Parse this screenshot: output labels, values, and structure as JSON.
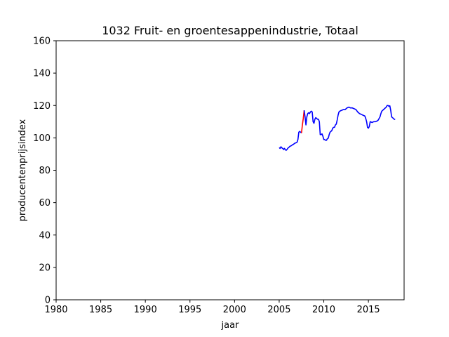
{
  "chart_data": {
    "type": "line",
    "title": "1032 Fruit- en groentesappenindustrie, Totaal",
    "xlabel": "jaar",
    "ylabel": "producentenprijsindex",
    "xlim": [
      1980,
      2019
    ],
    "ylim": [
      0,
      160
    ],
    "xticks": [
      1980,
      1985,
      1990,
      1995,
      2000,
      2005,
      2010,
      2015
    ],
    "yticks": [
      0,
      20,
      40,
      60,
      80,
      100,
      120,
      140,
      160
    ],
    "grid": false,
    "legend": "none",
    "series": [
      {
        "color": "#0000ff",
        "points": [
          [
            2005.0,
            94
          ],
          [
            2005.1,
            93.5
          ],
          [
            2005.2,
            94.5
          ],
          [
            2005.3,
            93.8
          ],
          [
            2005.4,
            93.5
          ],
          [
            2005.5,
            92.8
          ],
          [
            2005.6,
            93.5
          ],
          [
            2005.7,
            92.5
          ],
          [
            2005.8,
            92.4
          ],
          [
            2005.9,
            93
          ],
          [
            2006.0,
            93.8
          ],
          [
            2006.1,
            94.2
          ],
          [
            2006.2,
            94.8
          ],
          [
            2006.3,
            95
          ],
          [
            2006.4,
            95.3
          ],
          [
            2006.5,
            95.8
          ],
          [
            2006.6,
            96
          ],
          [
            2006.7,
            96.5
          ],
          [
            2006.8,
            96.8
          ],
          [
            2006.9,
            97
          ],
          [
            2007.0,
            97.3
          ],
          [
            2007.1,
            99
          ],
          [
            2007.2,
            103.5
          ],
          [
            2007.3,
            104
          ],
          [
            2007.4,
            103.5
          ],
          [
            2007.5,
            103
          ]
        ]
      },
      {
        "color": "#ff0000",
        "points": [
          [
            2007.5,
            103
          ],
          [
            2007.6,
            108
          ],
          [
            2007.7,
            112
          ],
          [
            2007.8,
            117
          ]
        ]
      },
      {
        "color": "#0000ff",
        "points": [
          [
            2007.8,
            117
          ],
          [
            2007.9,
            113
          ],
          [
            2008.0,
            108
          ],
          [
            2008.1,
            113
          ],
          [
            2008.2,
            115
          ],
          [
            2008.3,
            115.5
          ],
          [
            2008.4,
            115
          ],
          [
            2008.5,
            116
          ],
          [
            2008.6,
            116.5
          ],
          [
            2008.7,
            116
          ],
          [
            2008.8,
            110
          ],
          [
            2008.9,
            109
          ],
          [
            2009.0,
            111.5
          ],
          [
            2009.1,
            112.5
          ],
          [
            2009.2,
            112
          ],
          [
            2009.3,
            111.5
          ],
          [
            2009.4,
            111.5
          ],
          [
            2009.5,
            110
          ],
          [
            2009.6,
            102
          ],
          [
            2009.7,
            102
          ],
          [
            2009.8,
            102.5
          ],
          [
            2009.9,
            101
          ],
          [
            2010.0,
            99
          ],
          [
            2010.1,
            99
          ],
          [
            2010.2,
            98.5
          ],
          [
            2010.3,
            98.5
          ],
          [
            2010.4,
            99.5
          ],
          [
            2010.5,
            99.8
          ],
          [
            2010.6,
            102
          ],
          [
            2010.7,
            103.5
          ],
          [
            2010.8,
            104
          ],
          [
            2010.9,
            104.5
          ],
          [
            2011.0,
            106
          ],
          [
            2011.1,
            106.5
          ],
          [
            2011.2,
            106.5
          ],
          [
            2011.3,
            108
          ],
          [
            2011.4,
            108.5
          ],
          [
            2011.5,
            111
          ],
          [
            2011.6,
            114
          ],
          [
            2011.7,
            116
          ],
          [
            2011.8,
            116.5
          ],
          [
            2011.9,
            116.8
          ],
          [
            2012.0,
            117
          ],
          [
            2012.2,
            117.5
          ],
          [
            2012.4,
            117.5
          ],
          [
            2012.6,
            118.5
          ],
          [
            2012.8,
            119
          ],
          [
            2013.0,
            118.5
          ],
          [
            2013.2,
            118.5
          ],
          [
            2013.4,
            118
          ],
          [
            2013.6,
            117.5
          ],
          [
            2013.8,
            116
          ],
          [
            2014.0,
            115
          ],
          [
            2014.2,
            114.5
          ],
          [
            2014.4,
            114
          ],
          [
            2014.6,
            113.5
          ],
          [
            2014.7,
            112
          ],
          [
            2014.8,
            110
          ],
          [
            2014.9,
            106.5
          ],
          [
            2015.0,
            106
          ],
          [
            2015.1,
            107
          ],
          [
            2015.2,
            110
          ],
          [
            2015.3,
            109.8
          ],
          [
            2015.4,
            109.5
          ],
          [
            2015.6,
            110
          ],
          [
            2015.8,
            110
          ],
          [
            2016.0,
            110.5
          ],
          [
            2016.1,
            111
          ],
          [
            2016.2,
            112
          ],
          [
            2016.3,
            113
          ],
          [
            2016.4,
            115
          ],
          [
            2016.5,
            116.5
          ],
          [
            2016.6,
            117
          ],
          [
            2016.7,
            117.5
          ],
          [
            2016.8,
            118
          ],
          [
            2016.9,
            118.5
          ],
          [
            2017.0,
            119
          ],
          [
            2017.1,
            120
          ],
          [
            2017.2,
            120
          ],
          [
            2017.3,
            119.5
          ],
          [
            2017.4,
            119.8
          ],
          [
            2017.5,
            117
          ],
          [
            2017.6,
            113
          ],
          [
            2017.7,
            112.5
          ],
          [
            2017.8,
            112
          ],
          [
            2017.9,
            111.5
          ],
          [
            2018.0,
            111.3
          ]
        ]
      }
    ]
  }
}
